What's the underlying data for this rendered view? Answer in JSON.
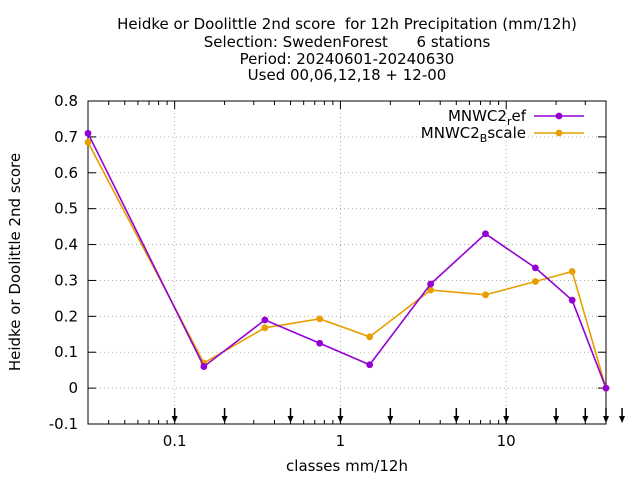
{
  "chart_data": {
    "type": "line",
    "title_lines": [
      "Heidke or Doolittle 2nd score  for 12h Precipitation (mm/12h)",
      "Selection: SwedenForest      6 stations",
      "Period: 20240601-20240630",
      "Used 00,06,12,18 + 12-00"
    ],
    "xlabel": "classes mm/12h",
    "ylabel": "Heidke or Doolittle 2nd score",
    "xscale": "log",
    "xlim": [
      0.03,
      40
    ],
    "ylim": [
      -0.1,
      0.8
    ],
    "yticks": [
      -0.1,
      0,
      0.1,
      0.2,
      0.3,
      0.4,
      0.5,
      0.6,
      0.7,
      0.8
    ],
    "ytick_labels": [
      "-0.1",
      "0",
      "0.1",
      "0.2",
      "0.3",
      "0.4",
      "0.5",
      "0.6",
      "0.7",
      "0.8"
    ],
    "xticks": [
      0.1,
      1,
      10
    ],
    "xtick_labels": [
      "0.1",
      "1",
      "10"
    ],
    "grid": true,
    "legend_position": "top-right",
    "threshold_markers": [
      0.1,
      0.2,
      0.5,
      1,
      2,
      5,
      10,
      20,
      30,
      40,
      50
    ],
    "series": [
      {
        "name_main": "MNWC2",
        "name_sub": "r",
        "name_rest": "ef",
        "color": "#9400d3",
        "x": [
          0.03,
          0.15,
          0.35,
          0.75,
          1.5,
          3.5,
          7.5,
          15,
          25,
          40
        ],
        "y": [
          0.71,
          0.06,
          0.19,
          0.125,
          0.065,
          0.29,
          0.43,
          0.335,
          0.245,
          0.0
        ]
      },
      {
        "name_main": "MNWC2",
        "name_sub": "B",
        "name_rest": "scale",
        "color": "#e69f00",
        "x": [
          0.03,
          0.15,
          0.35,
          0.75,
          1.5,
          3.5,
          7.5,
          15,
          25,
          40
        ],
        "y": [
          0.685,
          0.07,
          0.168,
          0.193,
          0.143,
          0.273,
          0.26,
          0.297,
          0.325,
          0.0
        ]
      }
    ]
  }
}
